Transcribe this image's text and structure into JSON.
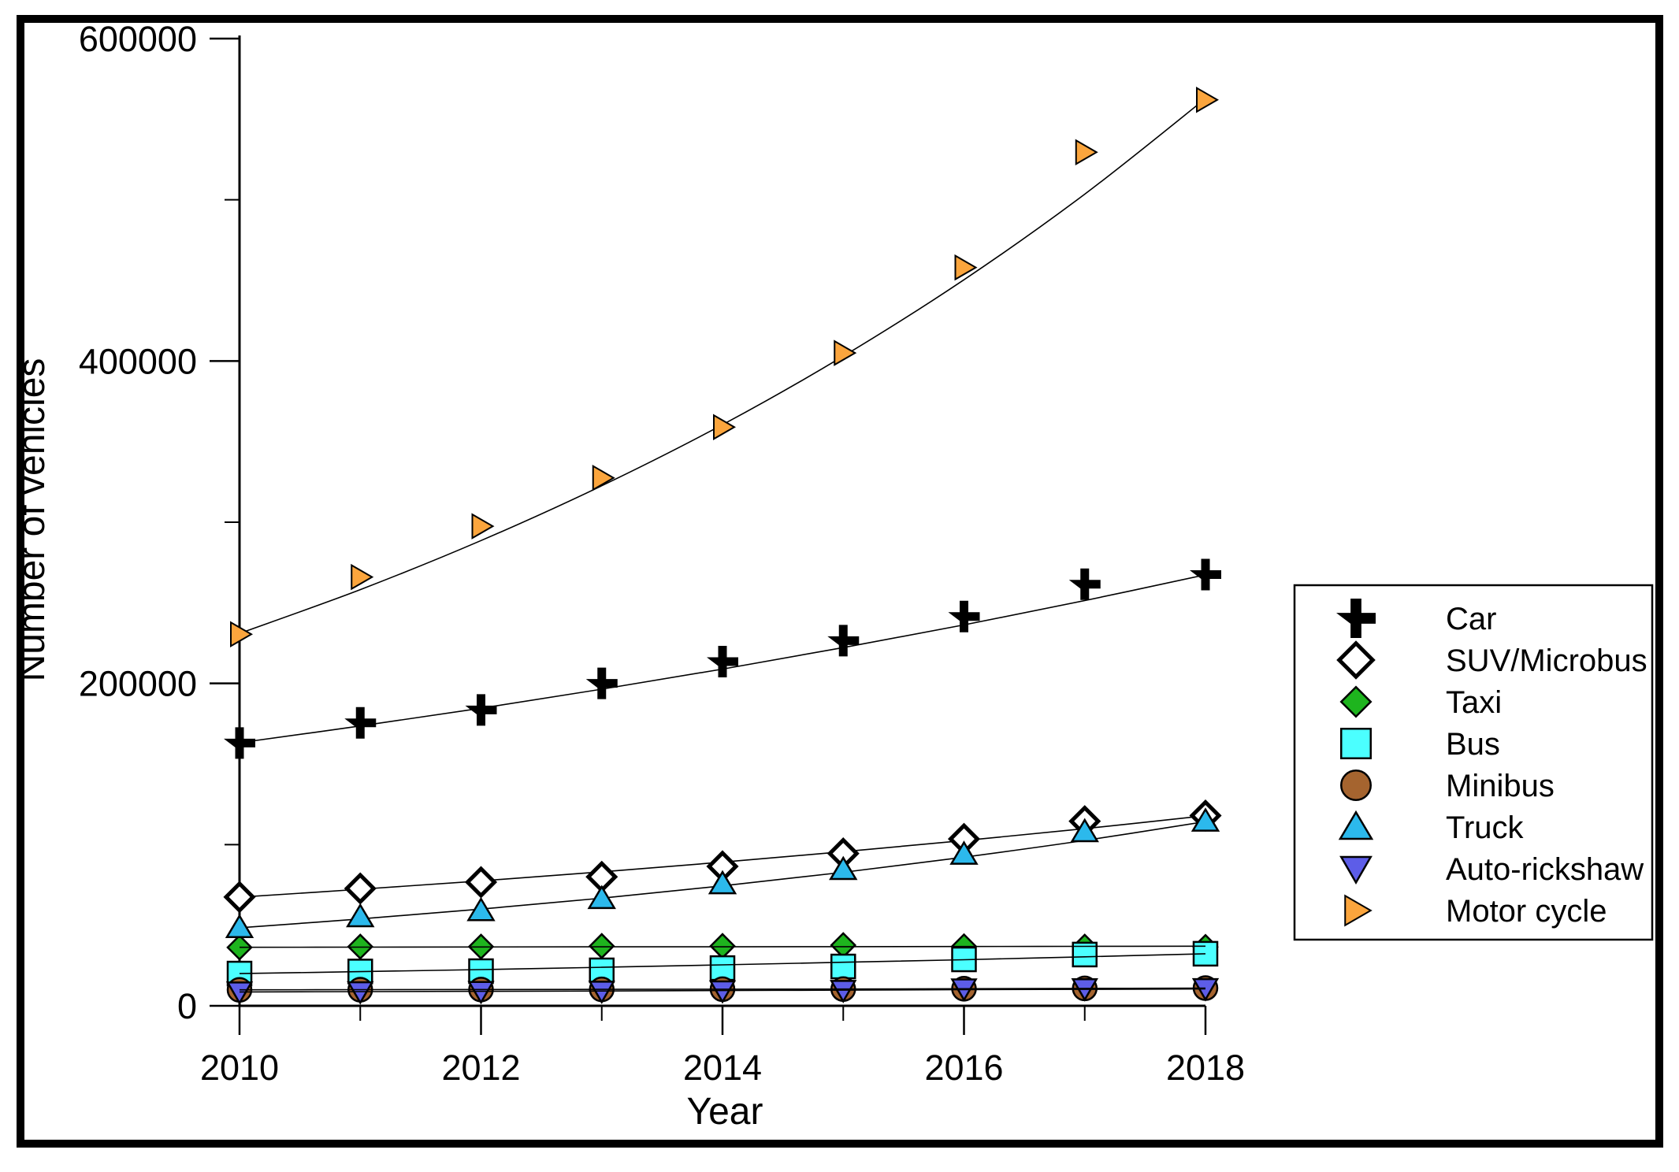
{
  "chart_data": {
    "type": "scatter",
    "title": "",
    "xlabel": "Year",
    "ylabel": "Number of vehicles",
    "x": [
      2010,
      2011,
      2012,
      2013,
      2014,
      2015,
      2016,
      2017,
      2018
    ],
    "xlim": [
      2010,
      2018
    ],
    "ylim": [
      0,
      600000
    ],
    "grid": false,
    "legend_position": "right",
    "x_major_ticks": [
      2010,
      2012,
      2014,
      2016,
      2018
    ],
    "x_minor_ticks": [
      2011,
      2013,
      2015,
      2017
    ],
    "y_major_ticks": [
      0,
      200000,
      400000,
      600000
    ],
    "y_minor_ticks": [
      100000,
      300000,
      500000
    ],
    "y_tick_labels": [
      "0",
      "200000",
      "400000",
      "600000"
    ],
    "x_tick_labels": [
      "2010",
      "2012",
      "2014",
      "2016",
      "2018"
    ],
    "frame_color": "#000000",
    "trend_line_color": "#000000",
    "series": [
      {
        "name": "Car",
        "marker": "plus",
        "color": "#000000",
        "layer": "over",
        "values": [
          163000,
          175500,
          183500,
          200000,
          213500,
          226500,
          241500,
          261500,
          267500
        ],
        "trend": [
          163200,
          173600,
          184600,
          196400,
          208900,
          222200,
          236300,
          251400,
          267400
        ]
      },
      {
        "name": "SUV/Microbus",
        "marker": "diamond-open",
        "color": "#ffffff",
        "layer": "over",
        "values": [
          67500,
          72800,
          76700,
          80000,
          86500,
          94500,
          103500,
          114500,
          118000
        ],
        "trend": [
          67400,
          72300,
          77500,
          83100,
          89100,
          95600,
          102500,
          109900,
          117900
        ]
      },
      {
        "name": "Taxi",
        "marker": "diamond",
        "color": "#1eb41e",
        "layer": "under",
        "values": [
          36200,
          36700,
          36700,
          37100,
          37100,
          37600,
          36900,
          36700,
          36500
        ],
        "trend": [
          36300,
          36400,
          36500,
          36600,
          36600,
          36700,
          36800,
          36900,
          37000
        ]
      },
      {
        "name": "Bus",
        "marker": "square",
        "color": "#4bffff",
        "layer": "under",
        "values": [
          20000,
          21300,
          21500,
          22000,
          23400,
          24400,
          28800,
          31800,
          32300
        ],
        "trend": [
          20000,
          21200,
          22500,
          23900,
          25400,
          27000,
          28600,
          30400,
          32300
        ]
      },
      {
        "name": "Minibus",
        "marker": "circle",
        "color": "#a5642f",
        "layer": "under",
        "values": [
          9900,
          10000,
          10100,
          10200,
          10300,
          10400,
          10600,
          10800,
          11000
        ],
        "trend": [
          9900,
          10000,
          10100,
          10200,
          10300,
          10400,
          10600,
          10800,
          11000
        ]
      },
      {
        "name": "Truck",
        "marker": "triangle-up",
        "color": "#2cb9ec",
        "layer": "over",
        "values": [
          48500,
          55200,
          59000,
          66500,
          75700,
          84500,
          94000,
          108000,
          114500
        ],
        "trend": [
          48400,
          53900,
          60000,
          66800,
          74400,
          82800,
          92200,
          102600,
          114300
        ]
      },
      {
        "name": "Auto-rickshaw",
        "marker": "triangle-down",
        "color": "#5d5de8",
        "layer": "under",
        "values": [
          8600,
          8750,
          8900,
          9100,
          9300,
          9600,
          10500,
          10600,
          10700
        ],
        "trend": [
          8600,
          8800,
          9000,
          9200,
          9500,
          9700,
          10000,
          10200,
          10500
        ]
      },
      {
        "name": "Motor cycle",
        "marker": "triangle-right",
        "color": "#fba53d",
        "layer": "over",
        "values": [
          230500,
          266000,
          297500,
          327500,
          359000,
          405000,
          458000,
          529500,
          562000
        ],
        "trend": [
          231000,
          258200,
          288600,
          322600,
          360500,
          403000,
          450400,
          503500,
          562800
        ]
      }
    ],
    "legend_items": [
      "Car",
      "SUV/Microbus",
      "Taxi",
      "Bus",
      "Minibus",
      "Truck",
      "Auto-rickshaw",
      "Motor cycle"
    ]
  }
}
